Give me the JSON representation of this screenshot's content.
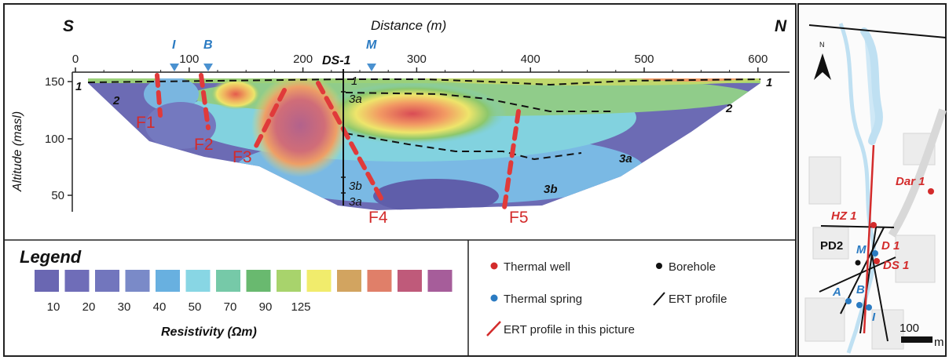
{
  "profile": {
    "title": "Distance (m)",
    "side_south": "S",
    "side_north": "N",
    "y_axis_label": "Altitude (masl)",
    "x_ticks": [
      "0",
      "100",
      "200",
      "300",
      "400",
      "500",
      "600"
    ],
    "y_ticks": [
      "150",
      "100",
      "50"
    ],
    "markers": [
      {
        "label": "I",
        "color": "#2b7bc2"
      },
      {
        "label": "B",
        "color": "#2b7bc2"
      },
      {
        "label": "M",
        "color": "#2b7bc2"
      }
    ],
    "borehole_label": "DS-1",
    "borehole_units": [
      "1",
      "3a",
      "3b",
      "3a"
    ],
    "faults": [
      "F1",
      "F2",
      "F3",
      "F4",
      "F5"
    ],
    "units": {
      "u1_left": "1",
      "u1_right": "1",
      "u2_left": "2",
      "u2_right": "2",
      "u3a": "3a",
      "u3b": "3b"
    }
  },
  "legend": {
    "title": "Legend",
    "swatches": [
      "#6a67b2",
      "#6f6db8",
      "#7276bd",
      "#7a8ac8",
      "#68b0e0",
      "#88d6e4",
      "#76c9a8",
      "#69b96f",
      "#a8d36c",
      "#f1ec6c",
      "#d2a460",
      "#e07f69",
      "#bf5a7a",
      "#a65d9a"
    ],
    "values": [
      "10",
      "20",
      "30",
      "40",
      "50",
      "70",
      "90",
      "125"
    ],
    "caption": "Resistivity (Ωm)"
  },
  "key": {
    "thermal_well": "Thermal well",
    "borehole": "Borehole",
    "thermal_spring": "Thermal spring",
    "ert_profile": "ERT profile",
    "ert_profile_picture": "ERT profile in this picture",
    "red": "#d32b2b",
    "blue": "#2b7bc2"
  },
  "map": {
    "north_label": "N",
    "wells": [
      "Dar 1",
      "HZ 1",
      "D 1",
      "DS 1"
    ],
    "borehole": "PD2",
    "springs": [
      "M",
      "A",
      "B",
      "I"
    ],
    "scale_value": "100",
    "scale_unit": "m"
  }
}
